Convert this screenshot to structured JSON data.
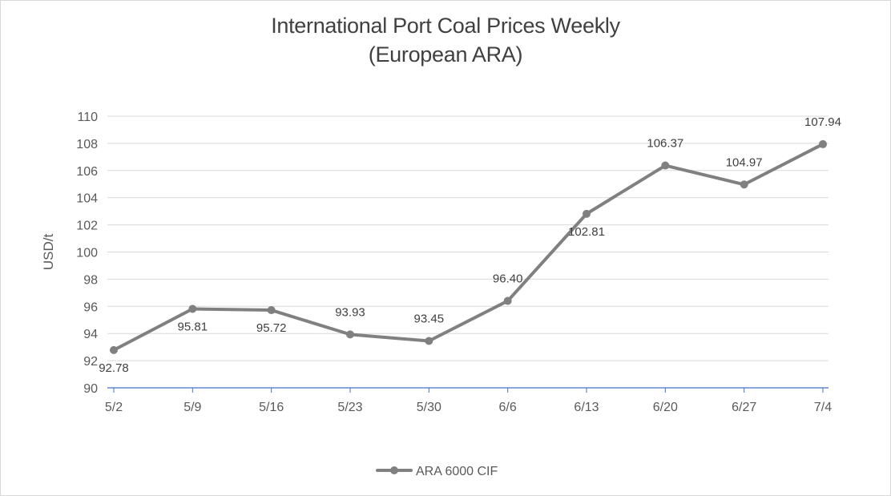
{
  "chart_data": {
    "type": "line",
    "title": [
      "International Port Coal Prices Weekly",
      "(European ARA)"
    ],
    "xlabel": "",
    "ylabel": "USD/t",
    "ylim": [
      90,
      110
    ],
    "ytick_step": 2,
    "categories": [
      "5/2",
      "5/9",
      "5/16",
      "5/23",
      "5/30",
      "6/6",
      "6/13",
      "6/20",
      "6/27",
      "7/4"
    ],
    "series": [
      {
        "name": "ARA 6000 CIF",
        "values": [
          92.78,
          95.81,
          95.72,
          93.93,
          93.45,
          96.4,
          102.81,
          106.37,
          104.97,
          107.94
        ],
        "labels": [
          "92.78",
          "95.81",
          "95.72",
          "93.93",
          "93.45",
          "96.40",
          "102.81",
          "106.37",
          "104.97",
          "107.94"
        ],
        "label_position": [
          "below",
          "below",
          "below",
          "above",
          "above",
          "above",
          "below",
          "above",
          "above",
          "above"
        ],
        "color": "#808080"
      }
    ],
    "grid": true,
    "legend": "bottom",
    "colors": {
      "grid": "#d9d9d9",
      "axis": "#4472c4",
      "series": "#808080"
    }
  }
}
